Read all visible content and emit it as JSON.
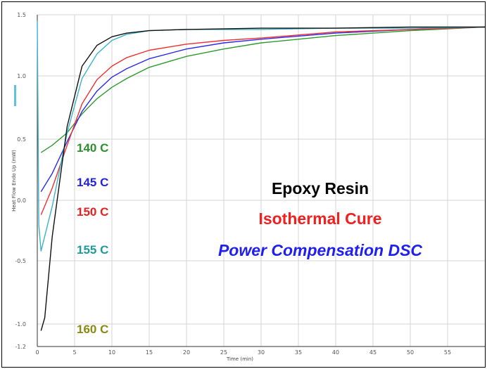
{
  "chart_data": {
    "type": "line",
    "xlabel": "Time (min)",
    "ylabel": "Heat Flow Endo Up (mW)",
    "xlim": [
      0,
      60
    ],
    "ylim": [
      -1.2,
      1.5
    ],
    "xticks": [
      0,
      5,
      10,
      15,
      20,
      25,
      30,
      35,
      40,
      45,
      50,
      55
    ],
    "xtick_labels": [
      "0",
      "5",
      "10",
      "15",
      "20",
      "25",
      "30",
      "35",
      "40",
      "45",
      "50",
      "55"
    ],
    "yticks": [
      -1.2,
      -1.0,
      -0.5,
      0.0,
      0.5,
      1.0,
      1.5
    ],
    "ytick_labels": [
      "-1.2",
      "-1.0",
      "-0.5",
      "0.0",
      "0.5",
      "1.0",
      "1.5"
    ],
    "grid": true,
    "series": [
      {
        "name": "140 C",
        "color": "#2e9a2e",
        "x": [
          0.5,
          2,
          4,
          6,
          8,
          10,
          12,
          15,
          20,
          25,
          30,
          40,
          50,
          60
        ],
        "y": [
          0.39,
          0.45,
          0.55,
          0.7,
          0.82,
          0.91,
          0.98,
          1.07,
          1.16,
          1.22,
          1.27,
          1.33,
          1.37,
          1.4
        ]
      },
      {
        "name": "145 C",
        "color": "#2a2ae8",
        "x": [
          0.5,
          2,
          4,
          6,
          8,
          10,
          12,
          15,
          20,
          25,
          30,
          40,
          50,
          60
        ],
        "y": [
          0.07,
          0.22,
          0.48,
          0.72,
          0.88,
          0.99,
          1.06,
          1.14,
          1.22,
          1.27,
          1.3,
          1.35,
          1.38,
          1.4
        ]
      },
      {
        "name": "150 C",
        "color": "#ee3030",
        "x": [
          0.5,
          2,
          4,
          6,
          8,
          10,
          12,
          15,
          20,
          25,
          30,
          40,
          50,
          60
        ],
        "y": [
          -0.12,
          0.1,
          0.45,
          0.78,
          0.97,
          1.08,
          1.15,
          1.21,
          1.26,
          1.29,
          1.31,
          1.36,
          1.38,
          1.4
        ]
      },
      {
        "name": "155 C",
        "color": "#3bb2c8",
        "x": [
          0.0,
          0.2,
          0.5,
          2,
          4,
          6,
          8,
          10,
          12,
          15,
          20,
          25,
          30,
          40,
          50,
          60
        ],
        "y": [
          1.45,
          -0.2,
          -0.42,
          -0.05,
          0.55,
          0.98,
          1.18,
          1.29,
          1.34,
          1.37,
          1.38,
          1.38,
          1.38,
          1.39,
          1.39,
          1.4
        ]
      },
      {
        "name": "160 C",
        "color": "#111111",
        "x": [
          0.5,
          1,
          2,
          4,
          6,
          8,
          10,
          12,
          15,
          20,
          30,
          40,
          50,
          60
        ],
        "y": [
          -1.06,
          -0.95,
          -0.3,
          0.6,
          1.08,
          1.25,
          1.32,
          1.35,
          1.37,
          1.38,
          1.39,
          1.39,
          1.4,
          1.4
        ]
      }
    ],
    "series_labels": [
      {
        "text": "140 C",
        "color": "#2e8f2e"
      },
      {
        "text": "145 C",
        "color": "#2323e0"
      },
      {
        "text": "150 C",
        "color": "#e82020"
      },
      {
        "text": "155 C",
        "color": "#1f9a9a"
      },
      {
        "text": "160 C",
        "color": "#8a8a10"
      }
    ],
    "annotations": [
      {
        "text": "Epoxy Resin",
        "color": "#000000"
      },
      {
        "text": "Isothermal Cure",
        "color": "#ee2020"
      },
      {
        "text": "Power Compensation DSC",
        "color": "#2020ee",
        "italic": true
      }
    ]
  }
}
